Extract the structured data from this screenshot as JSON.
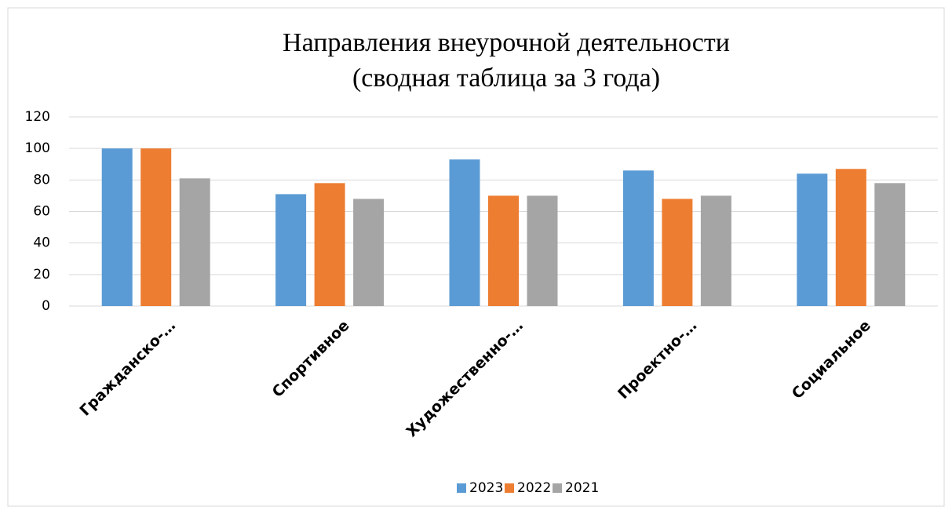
{
  "chart_data": {
    "type": "bar",
    "title": [
      "Направления внеурочной деятельности",
      "(сводная таблица за 3 года)"
    ],
    "categories": [
      "Гражданско-…",
      "Спортивное",
      "Художественно-…",
      "Проектно-…",
      "Социальное"
    ],
    "series": [
      {
        "name": "2023",
        "color": "#5b9bd5",
        "values": [
          100,
          71,
          93,
          86,
          84
        ]
      },
      {
        "name": "2022",
        "color": "#ed7d31",
        "values": [
          100,
          78,
          70,
          68,
          87
        ]
      },
      {
        "name": "2021",
        "color": "#a5a5a5",
        "values": [
          81,
          68,
          70,
          70,
          78
        ]
      }
    ],
    "ylim": [
      0,
      120
    ],
    "yticks": [
      0,
      20,
      40,
      60,
      80,
      100,
      120
    ],
    "grid": true,
    "legend": "bottom"
  }
}
